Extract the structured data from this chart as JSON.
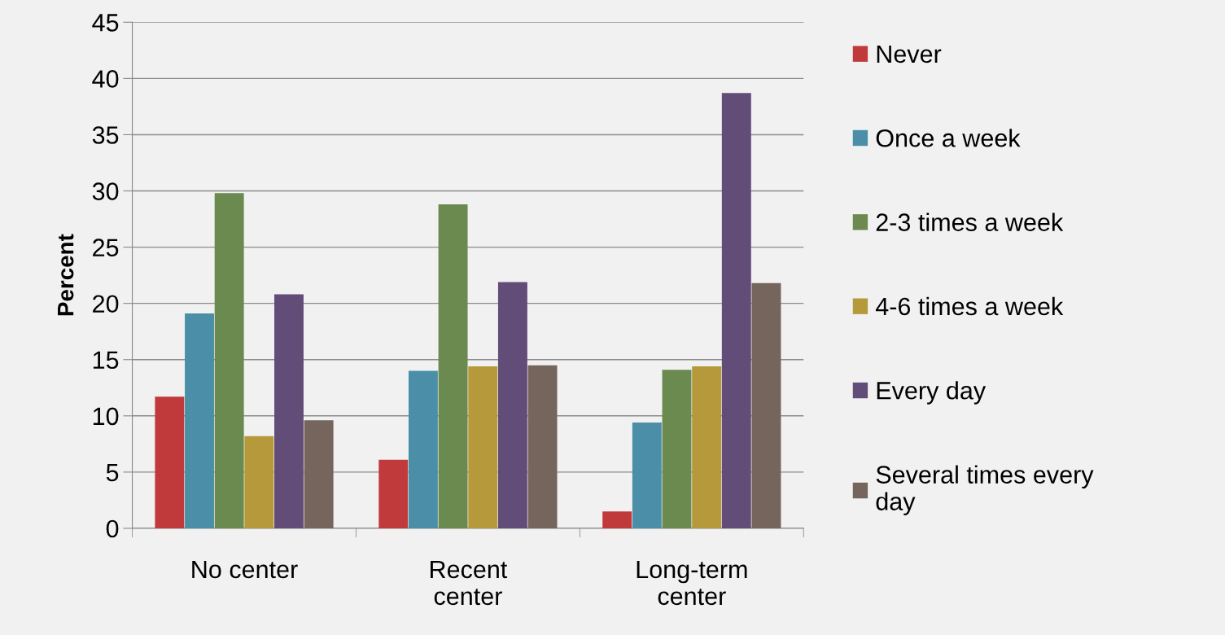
{
  "chart_data": {
    "type": "bar",
    "ylabel": "Percent",
    "categories": [
      "No center",
      "Recent\ncenter",
      "Long-term\ncenter"
    ],
    "series": [
      {
        "name": "Never",
        "color": "#c0393b",
        "values": [
          11.7,
          6.1,
          1.5
        ]
      },
      {
        "name": "Once a week",
        "color": "#4a8fa7",
        "values": [
          19.1,
          14.0,
          9.4
        ]
      },
      {
        "name": "2-3 times a week",
        "color": "#6b8a4f",
        "values": [
          29.8,
          28.8,
          14.1
        ]
      },
      {
        "name": "4-6 times a week",
        "color": "#b5993a",
        "values": [
          8.2,
          14.4,
          14.4
        ]
      },
      {
        "name": "Every day",
        "color": "#624c78",
        "values": [
          20.8,
          21.9,
          38.7
        ]
      },
      {
        "name": "Several times every\nday",
        "color": "#75655c",
        "values": [
          9.6,
          14.5,
          21.8
        ]
      }
    ],
    "ylim": [
      0,
      45
    ],
    "yticks": [
      0,
      5,
      10,
      15,
      20,
      25,
      30,
      35,
      40,
      45
    ],
    "grid": "y",
    "legend": "right"
  }
}
